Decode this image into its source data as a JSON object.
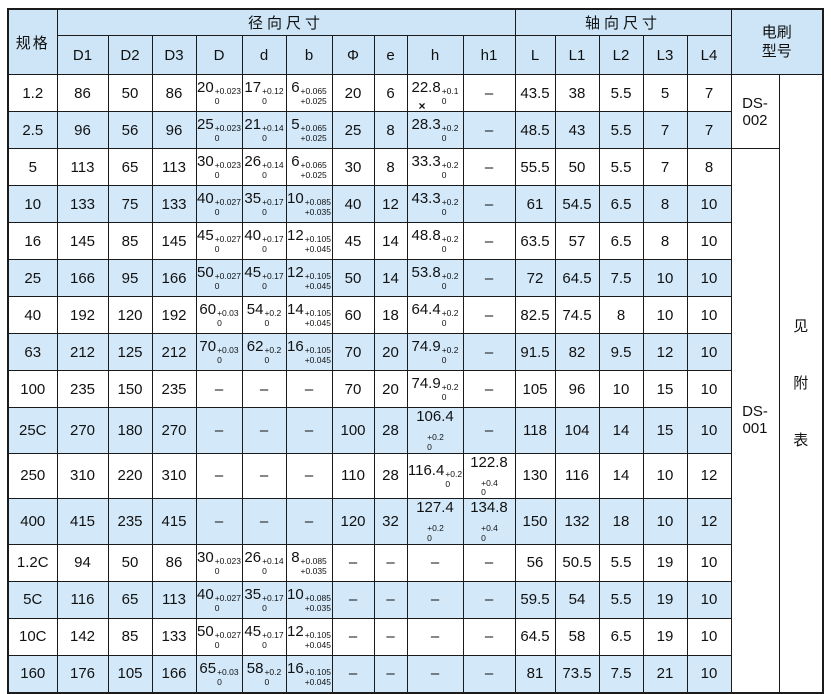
{
  "colors": {
    "header_bg": "#cde5f6",
    "stripe_bg": "#d3e9fa",
    "border": "#1b1b1b",
    "text": "#111111",
    "page_bg": "#ffffff"
  },
  "table": {
    "corner_label": "规格",
    "groups": [
      {
        "label": "径向尺寸",
        "span": 10
      },
      {
        "label": "轴向尺寸",
        "span": 5
      }
    ],
    "brush_header": "电刷\n型号",
    "columns": [
      {
        "key": "D1",
        "label": "D1"
      },
      {
        "key": "D2",
        "label": "D2"
      },
      {
        "key": "D3",
        "label": "D3"
      },
      {
        "key": "D",
        "label": "D"
      },
      {
        "key": "d",
        "label": "d"
      },
      {
        "key": "b",
        "label": "b"
      },
      {
        "key": "phi",
        "label": "Φ"
      },
      {
        "key": "e",
        "label": "e"
      },
      {
        "key": "h",
        "label": "h"
      },
      {
        "key": "h1",
        "label": "h1"
      },
      {
        "key": "L",
        "label": "L"
      },
      {
        "key": "L1",
        "label": "L1"
      },
      {
        "key": "L2",
        "label": "L2"
      },
      {
        "key": "L3",
        "label": "L3"
      },
      {
        "key": "L4",
        "label": "L4"
      }
    ],
    "rows": [
      {
        "spec": "1.2",
        "cells": [
          "86",
          "50",
          "86",
          {
            "n": "20",
            "top": "+0.023",
            "bot": "0"
          },
          {
            "n": "17",
            "top": "+0.12",
            "bot": "0"
          },
          {
            "n": "6",
            "top": "+0.065",
            "bot": "+0.025"
          },
          "20",
          "6",
          {
            "n": "22.8",
            "top": "+0.1",
            "bot": "0",
            "mark": "×"
          },
          "–",
          "43.5",
          "38",
          "5.5",
          "5",
          "7"
        ]
      },
      {
        "spec": "2.5",
        "cells": [
          "96",
          "56",
          "96",
          {
            "n": "25",
            "top": "+0.023",
            "bot": "0"
          },
          {
            "n": "21",
            "top": "+0.14",
            "bot": "0"
          },
          {
            "n": "5",
            "top": "+0.065",
            "bot": "+0.025"
          },
          "25",
          "8",
          {
            "n": "28.3",
            "top": "+0.2",
            "bot": "0"
          },
          "–",
          "48.5",
          "43",
          "5.5",
          "7",
          "7"
        ]
      },
      {
        "spec": "5",
        "cells": [
          "113",
          "65",
          "113",
          {
            "n": "30",
            "top": "+0.023",
            "bot": "0"
          },
          {
            "n": "26",
            "top": "+0.14",
            "bot": "0"
          },
          {
            "n": "6",
            "top": "+0.065",
            "bot": "+0.025"
          },
          "30",
          "8",
          {
            "n": "33.3",
            "top": "+0.2",
            "bot": "0"
          },
          "–",
          "55.5",
          "50",
          "5.5",
          "7",
          "8"
        ]
      },
      {
        "spec": "10",
        "cells": [
          "133",
          "75",
          "133",
          {
            "n": "40",
            "top": "+0.027",
            "bot": "0"
          },
          {
            "n": "35",
            "top": "+0.17",
            "bot": "0"
          },
          {
            "n": "10",
            "top": "+0.085",
            "bot": "+0.035"
          },
          "40",
          "12",
          {
            "n": "43.3",
            "top": "+0.2",
            "bot": "0"
          },
          "–",
          "61",
          "54.5",
          "6.5",
          "8",
          "10"
        ]
      },
      {
        "spec": "16",
        "cells": [
          "145",
          "85",
          "145",
          {
            "n": "45",
            "top": "+0.027",
            "bot": "0"
          },
          {
            "n": "40",
            "top": "+0.17",
            "bot": "0"
          },
          {
            "n": "12",
            "top": "+0.105",
            "bot": "+0.045"
          },
          "45",
          "14",
          {
            "n": "48.8",
            "top": "+0.2",
            "bot": "0"
          },
          "–",
          "63.5",
          "57",
          "6.5",
          "8",
          "10"
        ]
      },
      {
        "spec": "25",
        "cells": [
          "166",
          "95",
          "166",
          {
            "n": "50",
            "top": "+0.027",
            "bot": "0"
          },
          {
            "n": "45",
            "top": "+0.17",
            "bot": "0"
          },
          {
            "n": "12",
            "top": "+0.105",
            "bot": "+0.045"
          },
          "50",
          "14",
          {
            "n": "53.8",
            "top": "+0.2",
            "bot": "0"
          },
          "–",
          "72",
          "64.5",
          "7.5",
          "10",
          "10"
        ]
      },
      {
        "spec": "40",
        "cells": [
          "192",
          "120",
          "192",
          {
            "n": "60",
            "top": "+0.03",
            "bot": "0"
          },
          {
            "n": "54",
            "top": "+0.2",
            "bot": "0"
          },
          {
            "n": "14",
            "top": "+0.105",
            "bot": "+0.045"
          },
          "60",
          "18",
          {
            "n": "64.4",
            "top": "+0.2",
            "bot": "0"
          },
          "–",
          "82.5",
          "74.5",
          "8",
          "10",
          "10"
        ]
      },
      {
        "spec": "63",
        "cells": [
          "212",
          "125",
          "212",
          {
            "n": "70",
            "top": "+0.03",
            "bot": "0"
          },
          {
            "n": "62",
            "top": "+0.2",
            "bot": "0"
          },
          {
            "n": "16",
            "top": "+0.105",
            "bot": "+0.045"
          },
          "70",
          "20",
          {
            "n": "74.9",
            "top": "+0.2",
            "bot": "0"
          },
          "–",
          "91.5",
          "82",
          "9.5",
          "12",
          "10"
        ]
      },
      {
        "spec": "100",
        "cells": [
          "235",
          "150",
          "235",
          "–",
          "–",
          "–",
          "70",
          "20",
          {
            "n": "74.9",
            "top": "+0.2",
            "bot": "0"
          },
          "–",
          "105",
          "96",
          "10",
          "15",
          "10"
        ]
      },
      {
        "spec": "25C",
        "cells": [
          "270",
          "180",
          "270",
          "–",
          "–",
          "–",
          "100",
          "28",
          {
            "n": "106.4",
            "top": "+0.2",
            "bot": "0"
          },
          "–",
          "118",
          "104",
          "14",
          "15",
          "10"
        ]
      },
      {
        "spec": "250",
        "cells": [
          "310",
          "220",
          "310",
          "–",
          "–",
          "–",
          "110",
          "28",
          {
            "n": "116.4",
            "top": "+0.2",
            "bot": "0"
          },
          {
            "n": "122.8",
            "top": "+0.4",
            "bot": "0"
          },
          "130",
          "116",
          "14",
          "10",
          "12"
        ]
      },
      {
        "spec": "400",
        "cells": [
          "415",
          "235",
          "415",
          "–",
          "–",
          "–",
          "120",
          "32",
          {
            "n": "127.4",
            "top": "+0.2",
            "bot": "0"
          },
          {
            "n": "134.8",
            "top": "+0.4",
            "bot": "0"
          },
          "150",
          "132",
          "18",
          "10",
          "12"
        ]
      },
      {
        "spec": "1.2C",
        "cells": [
          "94",
          "50",
          "86",
          {
            "n": "30",
            "top": "+0.023",
            "bot": "0"
          },
          {
            "n": "26",
            "top": "+0.14",
            "bot": "0"
          },
          {
            "n": "8",
            "top": "+0.085",
            "bot": "+0.035"
          },
          "–",
          "–",
          "–",
          "–",
          "56",
          "50.5",
          "5.5",
          "19",
          "10"
        ]
      },
      {
        "spec": "5C",
        "cells": [
          "116",
          "65",
          "113",
          {
            "n": "40",
            "top": "+0.027",
            "bot": "0"
          },
          {
            "n": "35",
            "top": "+0.17",
            "bot": "0"
          },
          {
            "n": "10",
            "top": "+0.085",
            "bot": "+0.035"
          },
          "–",
          "–",
          "–",
          "–",
          "59.5",
          "54",
          "5.5",
          "19",
          "10"
        ]
      },
      {
        "spec": "10C",
        "cells": [
          "142",
          "85",
          "133",
          {
            "n": "50",
            "top": "+0.027",
            "bot": "0"
          },
          {
            "n": "45",
            "top": "+0.17",
            "bot": "0"
          },
          {
            "n": "12",
            "top": "+0.105",
            "bot": "+0.045"
          },
          "–",
          "–",
          "–",
          "–",
          "64.5",
          "58",
          "6.5",
          "19",
          "10"
        ]
      },
      {
        "spec": "160",
        "cells": [
          "176",
          "105",
          "166",
          {
            "n": "65",
            "top": "+0.03",
            "bot": "0"
          },
          {
            "n": "58",
            "top": "+0.2",
            "bot": "0"
          },
          {
            "n": "16",
            "top": "+0.105",
            "bot": "+0.045"
          },
          "–",
          "–",
          "–",
          "–",
          "81",
          "73.5",
          "7.5",
          "21",
          "10"
        ]
      }
    ],
    "brush": {
      "models": [
        {
          "label": "DS-002",
          "row_span": 2
        },
        {
          "label": "DS-001",
          "row_span": 14
        }
      ],
      "note": "见附表"
    }
  }
}
